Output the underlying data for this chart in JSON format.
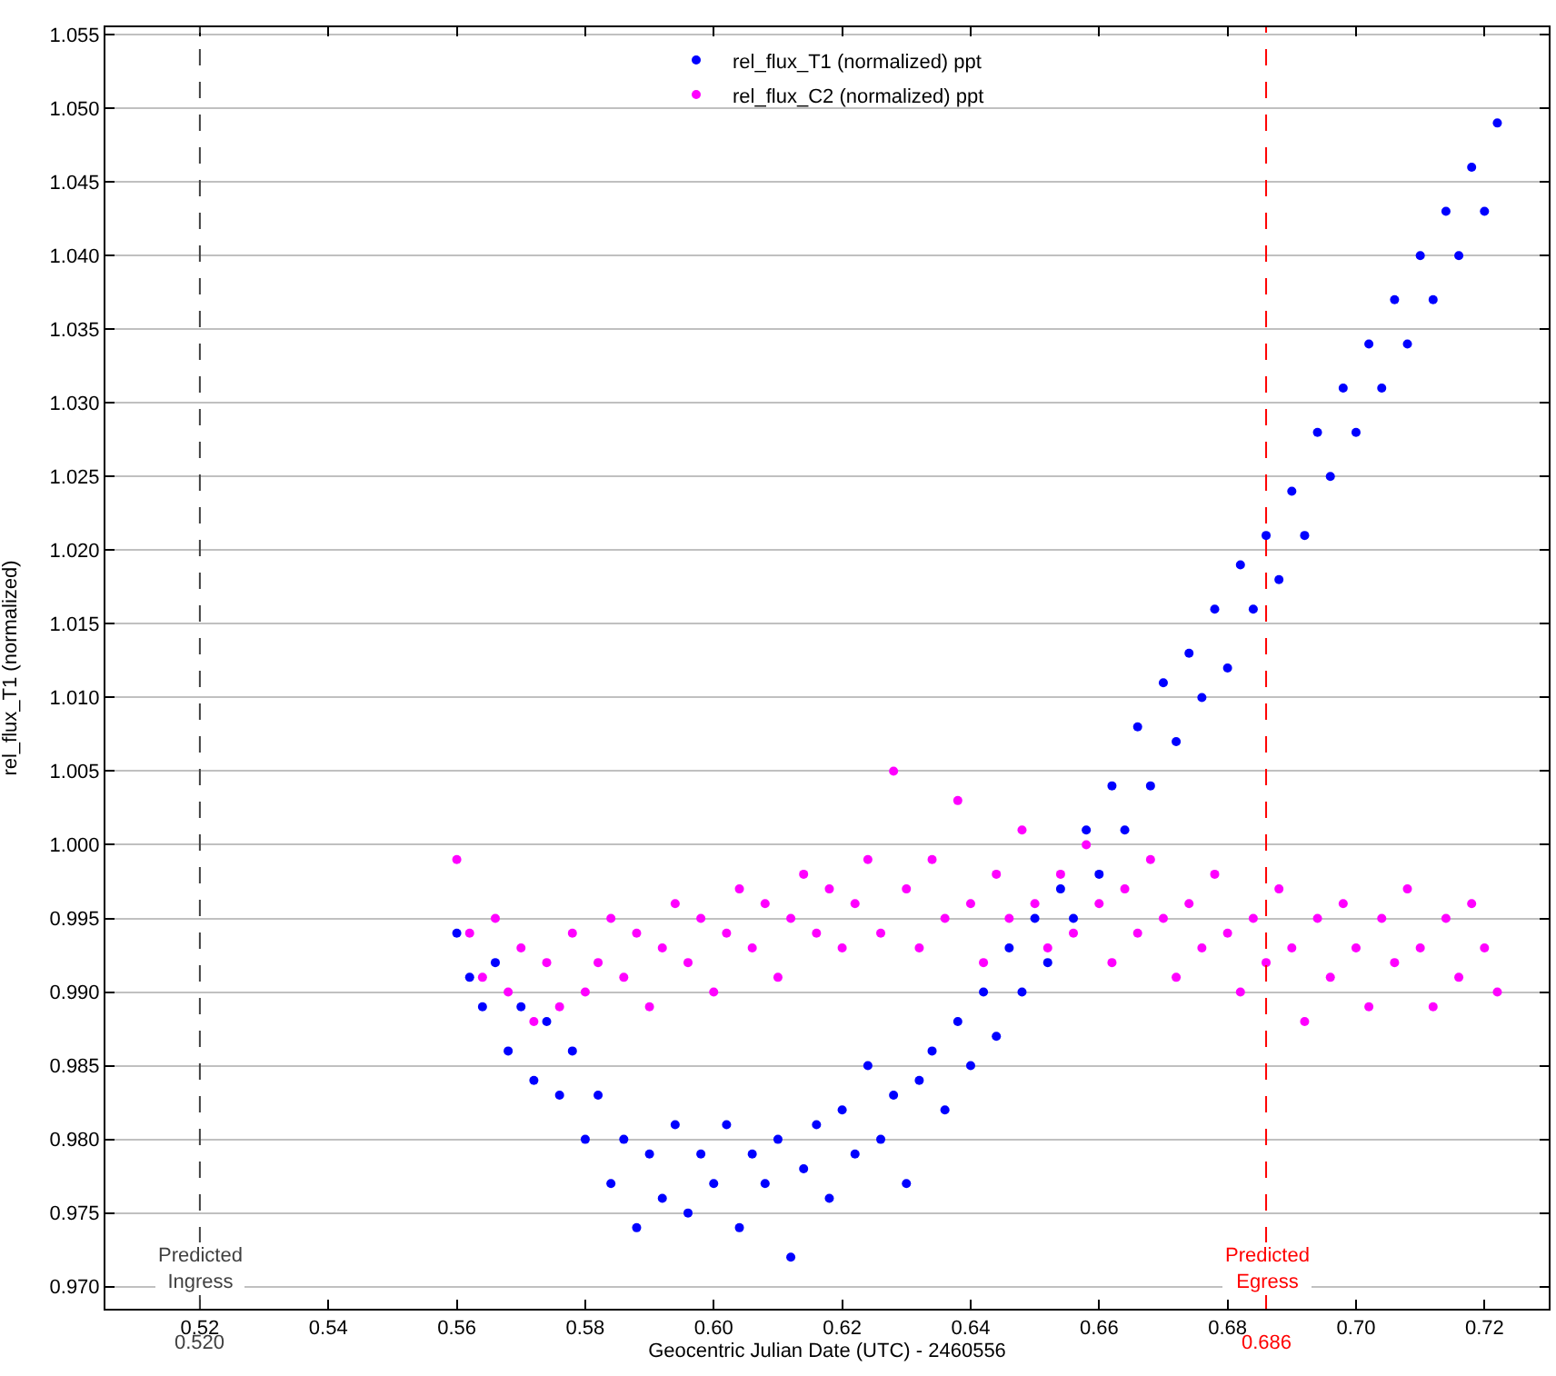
{
  "chart_data": {
    "type": "scatter",
    "xlabel": "Geocentric Julian Date (UTC) - 2460556",
    "ylabel": "rel_flux_T1 (normalized)",
    "x": [
      0.56,
      0.562,
      0.564,
      0.566,
      0.568,
      0.57,
      0.572,
      0.574,
      0.576,
      0.578,
      0.58,
      0.582,
      0.584,
      0.586,
      0.588,
      0.59,
      0.592,
      0.594,
      0.596,
      0.598,
      0.6,
      0.602,
      0.604,
      0.606,
      0.608,
      0.61,
      0.612,
      0.614,
      0.616,
      0.618,
      0.62,
      0.622,
      0.624,
      0.626,
      0.628,
      0.63,
      0.632,
      0.634,
      0.636,
      0.638,
      0.64,
      0.642,
      0.644,
      0.646,
      0.648,
      0.65,
      0.652,
      0.654,
      0.656,
      0.658,
      0.66,
      0.662,
      0.664,
      0.666,
      0.668,
      0.67,
      0.672,
      0.674,
      0.676,
      0.678,
      0.68,
      0.682,
      0.684,
      0.686,
      0.688,
      0.69,
      0.692,
      0.694,
      0.696,
      0.698,
      0.7,
      0.702,
      0.704,
      0.706,
      0.708,
      0.71,
      0.712,
      0.714,
      0.716,
      0.718,
      0.72,
      0.722
    ],
    "series": [
      {
        "name": "rel_flux_T1 (normalized) ppt",
        "color": "#0000ff",
        "values": [
          0.994,
          0.991,
          0.989,
          0.992,
          0.986,
          0.989,
          0.984,
          0.988,
          0.983,
          0.986,
          0.98,
          0.983,
          0.977,
          0.98,
          0.974,
          0.979,
          0.976,
          0.981,
          0.975,
          0.979,
          0.977,
          0.981,
          0.974,
          0.979,
          0.977,
          0.98,
          0.972,
          0.978,
          0.981,
          0.976,
          0.982,
          0.979,
          0.985,
          0.98,
          0.983,
          0.977,
          0.984,
          0.986,
          0.982,
          0.988,
          0.985,
          0.99,
          0.987,
          0.993,
          0.99,
          0.995,
          0.992,
          0.997,
          0.995,
          1.001,
          0.998,
          1.004,
          1.001,
          1.008,
          1.004,
          1.011,
          1.007,
          1.013,
          1.01,
          1.016,
          1.012,
          1.019,
          1.016,
          1.021,
          1.018,
          1.024,
          1.021,
          1.028,
          1.025,
          1.031,
          1.028,
          1.034,
          1.031,
          1.037,
          1.034,
          1.04,
          1.037,
          1.043,
          1.04,
          1.046,
          1.043,
          1.049
        ]
      },
      {
        "name": "rel_flux_C2 (normalized) ppt",
        "color": "#ff00ff",
        "values": [
          0.999,
          0.994,
          0.991,
          0.995,
          0.99,
          0.993,
          0.988,
          0.992,
          0.989,
          0.994,
          0.99,
          0.992,
          0.995,
          0.991,
          0.994,
          0.989,
          0.993,
          0.996,
          0.992,
          0.995,
          0.99,
          0.994,
          0.997,
          0.993,
          0.996,
          0.991,
          0.995,
          0.998,
          0.994,
          0.997,
          0.993,
          0.996,
          0.999,
          0.994,
          1.005,
          0.997,
          0.993,
          0.999,
          0.995,
          1.003,
          0.996,
          0.992,
          0.998,
          0.995,
          1.001,
          0.996,
          0.993,
          0.998,
          0.994,
          1.0,
          0.996,
          0.992,
          0.997,
          0.994,
          0.999,
          0.995,
          0.991,
          0.996,
          0.993,
          0.998,
          0.994,
          0.99,
          0.995,
          0.992,
          0.997,
          0.993,
          0.988,
          0.995,
          0.991,
          0.996,
          0.993,
          0.989,
          0.995,
          0.992,
          0.997,
          0.993,
          0.989,
          0.995,
          0.991,
          0.996,
          0.993,
          0.99
        ]
      }
    ],
    "marker": "circle",
    "legend": "top",
    "grid": "y",
    "xlim": [
      0.5053,
      0.73
    ],
    "xticks": [
      0.52,
      0.54,
      0.56,
      0.58,
      {
        "value": 0.6,
        "label": "0.60"
      },
      0.62,
      0.64,
      0.66,
      0.68,
      {
        "value": 0.7,
        "label": "0.70"
      },
      0.72
    ],
    "annotations": [
      "0.520",
      "0.686"
    ],
    "ylim": [
      0.9685,
      1.0555
    ],
    "yticks": [
      {
        "value": 0.97,
        "label": "0.970"
      },
      {
        "value": 0.975,
        "label": "0.975"
      },
      {
        "value": 0.98,
        "label": "0.980"
      },
      {
        "value": 0.985,
        "label": "0.985"
      },
      {
        "value": 0.99,
        "label": "0.990"
      },
      {
        "value": 0.995,
        "label": "0.995"
      },
      {
        "value": 1.0,
        "label": "1.000"
      },
      {
        "value": 1.005,
        "label": "1.005"
      },
      {
        "value": 1.01,
        "label": "1.010"
      },
      {
        "value": 1.015,
        "label": "1.015"
      },
      {
        "value": 1.02,
        "label": "1.020"
      },
      {
        "value": 1.025,
        "label": "1.025"
      },
      {
        "value": 1.03,
        "label": "1.030"
      },
      {
        "value": 1.035,
        "label": "1.035"
      },
      {
        "value": 1.04,
        "label": "1.040"
      },
      {
        "value": 1.045,
        "label": "1.045"
      },
      {
        "value": 1.05,
        "label": "1.050"
      },
      {
        "value": 1.055,
        "label": "1.055"
      }
    ],
    "ref_lines": [
      {
        "axis": "x",
        "value": 0.52,
        "label": "Predicted\nIngress",
        "color": "#404040",
        "line_style": "dashed"
      },
      {
        "axis": "x",
        "value": 0.686,
        "label": "Predicted\nEgress",
        "color": "#ff0000",
        "line_style": "dashed"
      }
    ]
  }
}
